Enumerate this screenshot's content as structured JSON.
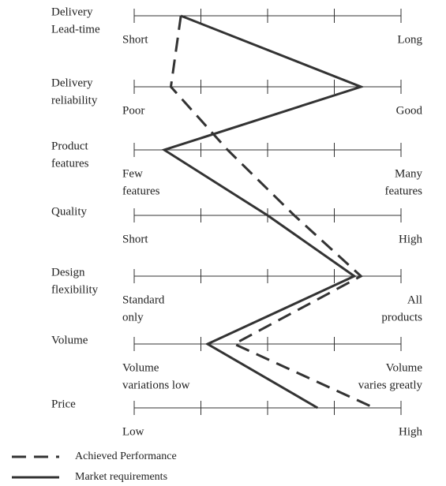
{
  "chart_data": {
    "type": "profile",
    "categories": [
      [
        "Delivery",
        "Lead-time"
      ],
      [
        "Delivery",
        "reliability"
      ],
      [
        "Product",
        "features"
      ],
      [
        "Quality"
      ],
      [
        "Design",
        "flexibility"
      ],
      [
        "Volume"
      ],
      [
        "Price"
      ]
    ],
    "low_labels": [
      [
        "Short"
      ],
      [
        "Poor"
      ],
      [
        "Few",
        "features"
      ],
      [
        "Short"
      ],
      [
        "Standard",
        "only"
      ],
      [
        "Volume",
        "variations low"
      ],
      [
        "Low"
      ]
    ],
    "high_labels": [
      [
        "Long"
      ],
      [
        "Good"
      ],
      [
        "Many",
        "features"
      ],
      [
        "High"
      ],
      [
        "All",
        "products"
      ],
      [
        "Volume",
        "varies greatly"
      ],
      [
        "High"
      ]
    ],
    "xlim": [
      0,
      4
    ],
    "xticks": [
      0,
      1,
      2,
      3,
      4
    ],
    "series": [
      {
        "name": "Achieved Performance",
        "color": "#333333",
        "dash": true,
        "values": [
          0.7,
          0.55,
          1.4,
          2.4,
          3.4,
          1.5,
          3.6
        ]
      },
      {
        "name": "Market requirements",
        "color": "#333333",
        "dash": false,
        "values": [
          0.7,
          3.4,
          0.45,
          2.0,
          3.3,
          1.1,
          2.75
        ]
      }
    ]
  }
}
